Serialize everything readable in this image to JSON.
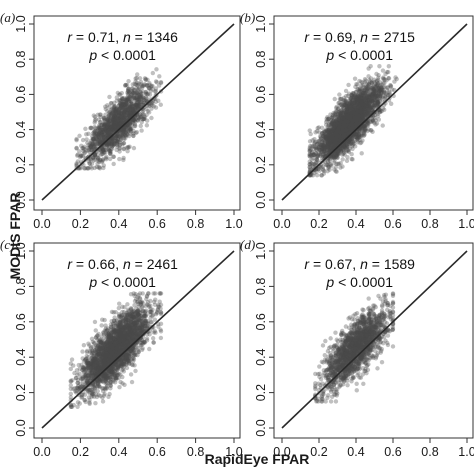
{
  "figure": {
    "ylabel": "MODIS FPAR",
    "xlabel": "RapidEye FPAR"
  },
  "colors": {
    "points": "#4a4a4a",
    "one_to_one_line": "#2a2a2a",
    "frame": "#333333"
  },
  "chart_data": [
    {
      "type": "scatter",
      "panel_label": "(a)",
      "stats": {
        "r": "0.71",
        "n": "1346",
        "p": "0.0001",
        "line1_r": "r",
        "line1_eq1": " = 0.71, ",
        "line1_n": "n",
        "line1_eq2": " = 1346",
        "line2_p": "p",
        "line2_rest": " < 0.0001"
      },
      "xlim": [
        0,
        1
      ],
      "ylim": [
        0,
        1
      ],
      "xticks": [
        "0.0",
        "0.2",
        "0.4",
        "0.6",
        "0.8",
        "1.0"
      ],
      "yticks": [
        "0.0",
        "0.2",
        "0.4",
        "0.6",
        "0.8",
        "1.0"
      ],
      "reference_line": "1:1",
      "point_cloud": {
        "n": 1346,
        "x_center": 0.4,
        "x_spread": 0.09,
        "x_range": [
          0.18,
          0.62
        ],
        "y_slope": 0.95,
        "y_intercept": 0.06,
        "y_spread": 0.07,
        "y_range": [
          0.18,
          0.78
        ]
      }
    },
    {
      "type": "scatter",
      "panel_label": "(b)",
      "stats": {
        "r": "0.69",
        "n": "2715",
        "p": "0.0001",
        "line1_r": "r",
        "line1_eq1": " = 0.69, ",
        "line1_n": "n",
        "line1_eq2": " = 2715",
        "line2_p": "p",
        "line2_rest": " < 0.0001"
      },
      "xlim": [
        0,
        1
      ],
      "ylim": [
        0,
        1
      ],
      "xticks": [
        "0.0",
        "0.2",
        "0.4",
        "0.6",
        "0.8",
        "1.0"
      ],
      "yticks": [
        "0.0",
        "0.2",
        "0.4",
        "0.6",
        "0.8",
        "1.0"
      ],
      "reference_line": "1:1",
      "point_cloud": {
        "n": 2715,
        "x_center": 0.36,
        "x_spread": 0.09,
        "x_range": [
          0.15,
          0.62
        ],
        "y_slope": 1.0,
        "y_intercept": 0.07,
        "y_spread": 0.07,
        "y_range": [
          0.14,
          0.76
        ]
      }
    },
    {
      "type": "scatter",
      "panel_label": "(c)",
      "stats": {
        "r": "0.66",
        "n": "2461",
        "p": "0.0001",
        "line1_r": "r",
        "line1_eq1": " = 0.66, ",
        "line1_n": "n",
        "line1_eq2": " = 2461",
        "line2_p": "p",
        "line2_rest": " < 0.0001"
      },
      "xlim": [
        0,
        1
      ],
      "ylim": [
        0,
        1
      ],
      "xticks": [
        "0.0",
        "0.2",
        "0.4",
        "0.6",
        "0.8",
        "1.0"
      ],
      "yticks": [
        "0.0",
        "0.2",
        "0.4",
        "0.6",
        "0.8",
        "1.0"
      ],
      "reference_line": "1:1",
      "point_cloud": {
        "n": 2461,
        "x_center": 0.38,
        "x_spread": 0.09,
        "x_range": [
          0.15,
          0.62
        ],
        "y_slope": 0.95,
        "y_intercept": 0.08,
        "y_spread": 0.08,
        "y_range": [
          0.12,
          0.76
        ]
      }
    },
    {
      "type": "scatter",
      "panel_label": "(d)",
      "stats": {
        "r": "0.67",
        "n": "1589",
        "p": "0.0001",
        "line1_r": "r",
        "line1_eq1": " = 0.67, ",
        "line1_n": "n",
        "line1_eq2": " = 1589",
        "line2_p": "p",
        "line2_rest": " < 0.0001"
      },
      "xlim": [
        0,
        1
      ],
      "ylim": [
        0,
        1
      ],
      "xticks": [
        "0.0",
        "0.2",
        "0.4",
        "0.6",
        "0.8",
        "1.0"
      ],
      "yticks": [
        "0.0",
        "0.2",
        "0.4",
        "0.6",
        "0.8",
        "1.0"
      ],
      "reference_line": "1:1",
      "point_cloud": {
        "n": 1589,
        "x_center": 0.4,
        "x_spread": 0.09,
        "x_range": [
          0.18,
          0.6
        ],
        "y_slope": 0.95,
        "y_intercept": 0.07,
        "y_spread": 0.075,
        "y_range": [
          0.15,
          0.76
        ]
      }
    }
  ]
}
